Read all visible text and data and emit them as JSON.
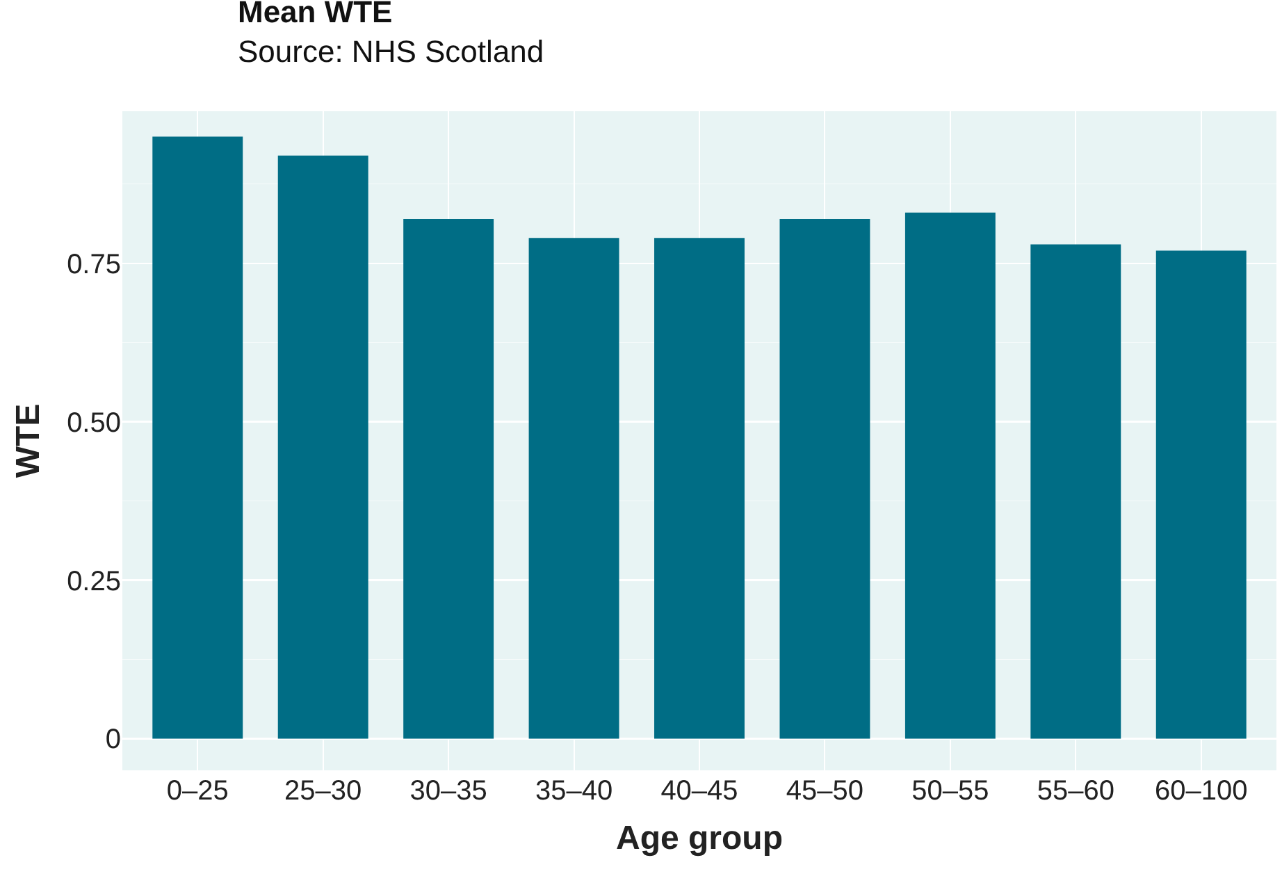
{
  "chart_data": {
    "type": "bar",
    "title": "Mean WTE",
    "subtitle": "Source: NHS Scotland",
    "xlabel": "Age group",
    "ylabel": "WTE",
    "categories": [
      "0–25",
      "25–30",
      "30–35",
      "35–40",
      "40–45",
      "45–50",
      "50–55",
      "55–60",
      "60–100"
    ],
    "values": [
      0.95,
      0.92,
      0.82,
      0.79,
      0.79,
      0.82,
      0.83,
      0.78,
      0.77
    ],
    "color": "#006d85",
    "ylim": [
      -0.05,
      0.99
    ],
    "yticks": [
      {
        "value": 0,
        "label": "0"
      },
      {
        "value": 0.25,
        "label": "0.25"
      },
      {
        "value": 0.5,
        "label": "0.50"
      },
      {
        "value": 0.75,
        "label": "0.75"
      }
    ],
    "grid": true
  }
}
